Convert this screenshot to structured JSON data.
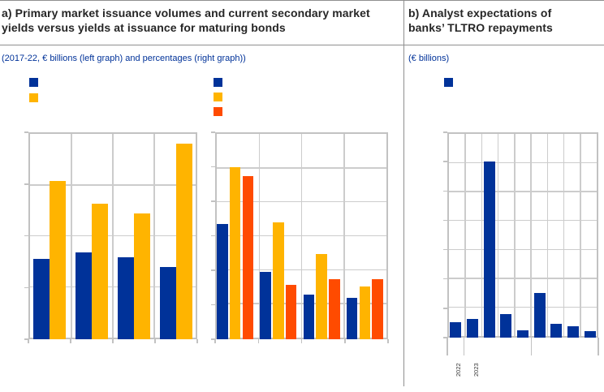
{
  "colors": {
    "blue": "#003299",
    "yellow": "#FFB400",
    "orange": "#FF4B00",
    "grid": "#CCCCCC",
    "plot_border": "#C2C2C2",
    "rule": "#8F8F8F",
    "title_text": "#262626",
    "subtitle_text": "#003299",
    "axis_label_text": "#3A3A3A"
  },
  "panel_a": {
    "title": "a) Primary market issuance volumes and current secondary market yields versus yields at issuance for maturing bonds",
    "subtitle": "(2017-22, € billions (left graph) and percentages (right graph))",
    "left_legend": [
      {
        "color": "#003299",
        "label": ""
      },
      {
        "color": "#FFB400",
        "label": ""
      }
    ],
    "right_legend": [
      {
        "color": "#003299",
        "label": ""
      },
      {
        "color": "#FFB400",
        "label": ""
      },
      {
        "color": "#FF4B00",
        "label": ""
      }
    ]
  },
  "panel_b": {
    "title": "b) Analyst expectations of banks’ TLTRO repayments",
    "subtitle": "(€ billions)",
    "legend": [
      {
        "color": "#003299",
        "label": ""
      }
    ],
    "x_year_labels": [
      "2022",
      "2023"
    ]
  },
  "chart_data": [
    {
      "id": "a-left",
      "type": "bar",
      "title": "Primary market issuance volumes",
      "unit": "€ billions",
      "axis_tick_labels_visible": false,
      "values_in": "gridline units (y tick labels not rendered in screenshot)",
      "categories": [
        "",
        "",
        "",
        ""
      ],
      "series": [
        {
          "name": "series-blue",
          "color": "#003299",
          "values": [
            1.55,
            1.68,
            1.58,
            1.4
          ]
        },
        {
          "name": "series-yellow",
          "color": "#FFB400",
          "values": [
            3.06,
            2.62,
            2.43,
            3.78
          ]
        }
      ],
      "ylim": [
        0,
        4
      ],
      "grid_rows": 4,
      "grid_cols": 4,
      "grid": true,
      "legend_position": "above"
    },
    {
      "id": "a-right",
      "type": "bar",
      "title": "Current secondary market yields versus yields at issuance for maturing bonds",
      "unit": "percentages",
      "axis_tick_labels_visible": false,
      "values_in": "gridline units (y tick labels not rendered in screenshot)",
      "categories": [
        "",
        "",
        "",
        ""
      ],
      "series": [
        {
          "name": "series-blue",
          "color": "#003299",
          "values": [
            3.34,
            1.95,
            1.29,
            1.2
          ]
        },
        {
          "name": "series-yellow",
          "color": "#FFB400",
          "values": [
            4.99,
            3.39,
            2.47,
            1.53
          ]
        },
        {
          "name": "series-orange",
          "color": "#FF4B00",
          "values": [
            4.74,
            1.58,
            1.74,
            1.74
          ]
        }
      ],
      "ylim": [
        0,
        6
      ],
      "grid_rows": 6,
      "grid_cols": 4,
      "grid": true,
      "legend_position": "above"
    },
    {
      "id": "b",
      "type": "bar",
      "title": "Analyst expectations of banks’ TLTRO repayments",
      "unit": "€ billions",
      "axis_tick_labels_visible": false,
      "values_in": "gridline units (y tick labels not rendered in screenshot)",
      "categories": [
        "",
        "",
        "",
        "",
        "",
        "",
        "",
        "",
        ""
      ],
      "x_year_labels": [
        "2022",
        "2023"
      ],
      "series": [
        {
          "name": "series-blue",
          "color": "#003299",
          "values": [
            0.53,
            0.63,
            6.0,
            0.8,
            0.26,
            1.51,
            0.48,
            0.39,
            0.22
          ]
        }
      ],
      "ylim": [
        0,
        7
      ],
      "grid_rows": 7,
      "grid_cols": 9,
      "grid": true,
      "legend_position": "above"
    }
  ]
}
